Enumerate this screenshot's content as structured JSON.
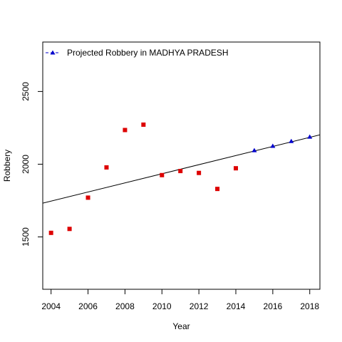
{
  "chart_data": {
    "type": "scatter",
    "title": "",
    "xlabel": "Year",
    "ylabel": "Robbery",
    "xlim": [
      2003.55,
      2018.55
    ],
    "ylim": [
      1140,
      2840
    ],
    "xticks": [
      2004,
      2006,
      2008,
      2010,
      2012,
      2014,
      2016,
      2018
    ],
    "xtick_labels": [
      "2004",
      "2006",
      "2008",
      "2010",
      "2012",
      "2014",
      "2016",
      "2018"
    ],
    "yticks": [
      1500,
      2000,
      2500
    ],
    "ytick_labels": [
      "1500",
      "2000",
      "2500"
    ],
    "grid": false,
    "legend_position": "top-left",
    "series": [
      {
        "kind": "observed",
        "marker": "square",
        "color": "#dd0000",
        "x": [
          2004,
          2005,
          2006,
          2007,
          2008,
          2009,
          2010,
          2011,
          2012,
          2013,
          2014
        ],
        "y": [
          1528,
          1555,
          1770,
          1978,
          2235,
          2272,
          1925,
          1953,
          1940,
          1830,
          1972
        ]
      },
      {
        "name": "Projected  Robbery  in  MADHYA PRADESH",
        "marker": "triangle",
        "color": "#0000cc",
        "x": [
          2015,
          2016,
          2017,
          2018
        ],
        "y": [
          2095,
          2125,
          2158,
          2188
        ]
      },
      {
        "kind": "trend-line",
        "color": "#000000",
        "x": [
          2003.55,
          2018.55
        ],
        "y": [
          1732,
          2202
        ]
      }
    ]
  }
}
